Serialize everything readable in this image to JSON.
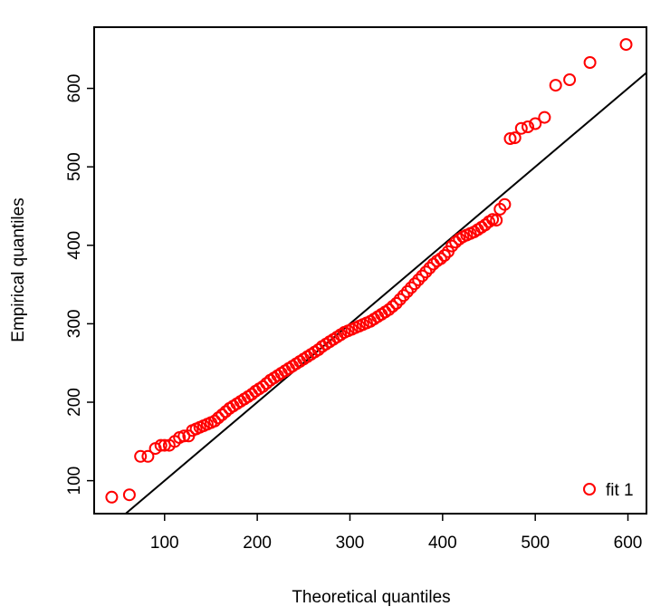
{
  "chart_data": {
    "type": "scatter",
    "title": "",
    "xlabel": "Theoretical quantiles",
    "ylabel": "Empirical quantiles",
    "xlim": [
      24,
      620
    ],
    "ylim": [
      58,
      678
    ],
    "x_ticks": [
      100,
      200,
      300,
      400,
      500,
      600
    ],
    "y_ticks": [
      100,
      200,
      300,
      400,
      500,
      600
    ],
    "grid": false,
    "legend": {
      "position": "bottom-right",
      "entries": [
        "fit 1"
      ]
    },
    "reference_line": {
      "intercept": 0,
      "slope": 1
    },
    "series": [
      {
        "name": "fit 1",
        "color": "#ff0000",
        "marker": "open-circle",
        "points": [
          [
            43,
            79
          ],
          [
            62,
            82
          ],
          [
            74,
            131
          ],
          [
            82,
            131
          ],
          [
            90,
            141
          ],
          [
            96,
            145
          ],
          [
            100,
            145
          ],
          [
            105,
            145
          ],
          [
            111,
            150
          ],
          [
            116,
            155
          ],
          [
            121,
            157
          ],
          [
            126,
            157
          ],
          [
            130,
            164
          ],
          [
            134,
            166
          ],
          [
            138,
            168
          ],
          [
            142,
            170
          ],
          [
            146,
            172
          ],
          [
            150,
            174
          ],
          [
            154,
            176
          ],
          [
            158,
            180
          ],
          [
            162,
            184
          ],
          [
            166,
            188
          ],
          [
            170,
            192
          ],
          [
            174,
            195
          ],
          [
            178,
            198
          ],
          [
            182,
            201
          ],
          [
            186,
            204
          ],
          [
            190,
            207
          ],
          [
            194,
            210
          ],
          [
            198,
            214
          ],
          [
            202,
            217
          ],
          [
            206,
            220
          ],
          [
            210,
            224
          ],
          [
            214,
            228
          ],
          [
            218,
            231
          ],
          [
            222,
            234
          ],
          [
            226,
            237
          ],
          [
            230,
            240
          ],
          [
            234,
            243
          ],
          [
            238,
            246
          ],
          [
            242,
            249
          ],
          [
            246,
            252
          ],
          [
            250,
            255
          ],
          [
            254,
            258
          ],
          [
            258,
            261
          ],
          [
            262,
            264
          ],
          [
            266,
            267
          ],
          [
            270,
            271
          ],
          [
            274,
            274
          ],
          [
            278,
            277
          ],
          [
            282,
            280
          ],
          [
            286,
            283
          ],
          [
            290,
            286
          ],
          [
            294,
            289
          ],
          [
            298,
            291
          ],
          [
            302,
            293
          ],
          [
            306,
            295
          ],
          [
            310,
            297
          ],
          [
            314,
            299
          ],
          [
            318,
            301
          ],
          [
            322,
            303
          ],
          [
            326,
            306
          ],
          [
            330,
            309
          ],
          [
            334,
            312
          ],
          [
            338,
            315
          ],
          [
            342,
            318
          ],
          [
            346,
            322
          ],
          [
            350,
            326
          ],
          [
            354,
            331
          ],
          [
            358,
            336
          ],
          [
            362,
            341
          ],
          [
            366,
            346
          ],
          [
            370,
            351
          ],
          [
            374,
            356
          ],
          [
            378,
            361
          ],
          [
            382,
            366
          ],
          [
            386,
            371
          ],
          [
            390,
            376
          ],
          [
            394,
            380
          ],
          [
            398,
            383
          ],
          [
            402,
            387
          ],
          [
            406,
            392
          ],
          [
            410,
            399
          ],
          [
            414,
            404
          ],
          [
            418,
            408
          ],
          [
            422,
            411
          ],
          [
            426,
            413
          ],
          [
            430,
            415
          ],
          [
            434,
            417
          ],
          [
            438,
            420
          ],
          [
            442,
            423
          ],
          [
            446,
            426
          ],
          [
            450,
            430
          ],
          [
            454,
            433
          ],
          [
            458,
            432
          ],
          [
            462,
            446
          ],
          [
            467,
            452
          ],
          [
            473,
            536
          ],
          [
            478,
            537
          ],
          [
            485,
            549
          ],
          [
            492,
            551
          ],
          [
            500,
            555
          ],
          [
            510,
            563
          ],
          [
            522,
            604
          ],
          [
            537,
            611
          ],
          [
            559,
            633
          ],
          [
            598,
            656
          ]
        ]
      }
    ]
  }
}
